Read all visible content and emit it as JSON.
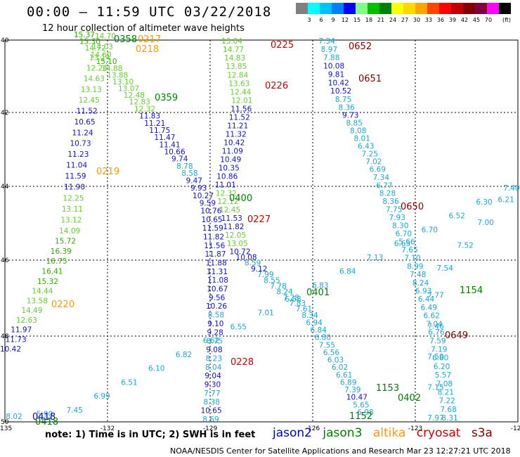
{
  "header": {
    "title": "00:00 – 11:59 UTC 03/22/2018",
    "subtitle": "12 hour collection of altimeter wave heights"
  },
  "color_scale": {
    "unit": "(ft)",
    "colors": [
      "#808080",
      "#00ffff",
      "#00bfff",
      "#0080ff",
      "#0000ff",
      "#80ff80",
      "#00c000",
      "#008000",
      "#ffff00",
      "#ffd700",
      "#ffa500",
      "#ff4500",
      "#ff0000",
      "#c00000",
      "#800000",
      "#800040",
      "#ff00ff",
      "#000000"
    ],
    "labels": [
      "3",
      "6",
      "9",
      "12",
      "15",
      "18",
      "21",
      "24",
      "27",
      "30",
      "33",
      "36",
      "39",
      "42",
      "45",
      "70"
    ]
  },
  "axes": {
    "lat_labels": [
      "40",
      "42",
      "44",
      "46",
      "48",
      "50"
    ],
    "lon_labels": [
      "-135",
      "-132",
      "-129",
      "-126",
      "-123",
      "-120"
    ]
  },
  "satellites": {
    "jason2": {
      "name": "jason2",
      "color": "#0000cc"
    },
    "jason3": {
      "name": "jason3",
      "color": "#008000"
    },
    "altika": {
      "name": "altika",
      "color": "#ff9900"
    },
    "cryosat": {
      "name": "cryosat",
      "color": "#cc0000"
    },
    "s3a": {
      "name": "s3a",
      "color": "#800000"
    }
  },
  "tracks": [
    {
      "id": "t1",
      "values": [
        "15.37",
        "15.30",
        "14.72",
        "14.60",
        "15.10",
        "14.88",
        "13.88",
        "13.10",
        "13.07",
        "12.48",
        "12.83",
        "12.32",
        "11.83",
        "11.21",
        "11.75",
        "11.47",
        "11.41",
        "10.66",
        "9.74",
        "8.78",
        "8.58",
        "9.47",
        "9.93",
        "10.27",
        "9.59",
        "10.76",
        "10.65",
        "11.59",
        "11.82",
        "11.56",
        "11.87",
        "11.88",
        "11.31",
        "11.08",
        "10.67",
        "9.56",
        "10.26",
        "8.58",
        "9.10",
        "9.28",
        "8.75",
        "9.08",
        "8.23",
        "8.04",
        "9.04",
        "9.30",
        "7.77",
        "8.38",
        "10.65",
        "8.69"
      ]
    },
    {
      "id": "t2",
      "values": [
        "13.84",
        "14.77",
        "14.83",
        "13.85",
        "12.84",
        "13.63",
        "12.44",
        "12.01",
        "11.56",
        "11.52",
        "11.21",
        "11.32",
        "10.42",
        "11.09",
        "10.49",
        "10.35",
        "10.86",
        "11.01",
        "12.32",
        "12.12",
        "12.45",
        "11.53",
        "11.82",
        "12.05",
        "13.05",
        "10.72",
        "10.08",
        "8.59",
        "9.12",
        "7.99",
        "8.55",
        "7.78",
        "8.24",
        "7.28",
        "7.83",
        "7.61",
        "8.34",
        "6.94",
        "6.84",
        "6.80",
        "7.55",
        "6.56",
        "6.03",
        "6.02",
        "6.61",
        "6.89",
        "7.39",
        "10.47",
        "5.65",
        "6.98"
      ]
    },
    {
      "id": "t3",
      "values": [
        "7.34",
        "8.97",
        "7.88",
        "10.08",
        "9.81",
        "10.42",
        "10.52",
        "8.75",
        "8.36",
        "9.73",
        "8.85",
        "8.08",
        "8.01",
        "6.43",
        "7.25",
        "7.02",
        "6.69",
        "7.34",
        "6.77",
        "8.28",
        "8.36",
        "7.75",
        "7.93",
        "8.30",
        "6.70",
        "5.66",
        "7.65",
        "7.10",
        "8.99",
        "7.48",
        "8.24",
        "6.93",
        "6.44",
        "6.49",
        "6.62",
        "7.04",
        "6.76",
        "7.59",
        "7.19",
        "6.80",
        "6.20",
        "5.57",
        "7.08",
        "8.21",
        "7.22",
        "7.68",
        "8.31"
      ]
    },
    {
      "id": "t4",
      "values": [
        "8.02",
        "5.90",
        "7.45",
        "6.99",
        "6.51",
        "6.10",
        "6.82",
        "6.62",
        "6.55",
        "7.01",
        "6.58",
        "6.83",
        "6.84",
        "7.13",
        "6.63",
        "6.70",
        "6.52",
        "6.30",
        "7.40",
        "6.21",
        "7.00",
        "7.52",
        "7.54",
        "7.77",
        "7.46",
        "7.50",
        "7.15",
        "7.97"
      ]
    },
    {
      "id": "t5",
      "values": [
        "10.42",
        "11.73",
        "11.97",
        "12.63",
        "14.49",
        "13.58",
        "14.44",
        "15.32",
        "16.41",
        "16.75",
        "16.39",
        "15.72",
        "14.09",
        "13.12",
        "13.11",
        "12.25",
        "11.90",
        "11.59",
        "11.04",
        "11.23",
        "10.73",
        "11.24",
        "10.65",
        "11.52",
        "12.45",
        "13.13",
        "14.63",
        "12.24",
        "13.14",
        "14.03",
        "14.70"
      ]
    }
  ],
  "time_labels": [
    {
      "t": "0358",
      "sat": "jason3"
    },
    {
      "t": "0217",
      "sat": "altika"
    },
    {
      "t": "0218",
      "sat": "altika"
    },
    {
      "t": "0359",
      "sat": "jason3"
    },
    {
      "t": "0219",
      "sat": "altika"
    },
    {
      "t": "0220",
      "sat": "altika"
    },
    {
      "t": "0418",
      "sat": "jason2"
    },
    {
      "t": "0418",
      "sat": "jason3"
    },
    {
      "t": "0225",
      "sat": "cryosat"
    },
    {
      "t": "0226",
      "sat": "cryosat"
    },
    {
      "t": "0400",
      "sat": "jason3"
    },
    {
      "t": "0227",
      "sat": "cryosat"
    },
    {
      "t": "0228",
      "sat": "cryosat"
    },
    {
      "t": "0401",
      "sat": "jason3"
    },
    {
      "t": "0652",
      "sat": "s3a"
    },
    {
      "t": "0651",
      "sat": "s3a"
    },
    {
      "t": "0650",
      "sat": "s3a"
    },
    {
      "t": "0649",
      "sat": "s3a"
    },
    {
      "t": "1154",
      "sat": "jason3"
    },
    {
      "t": "1153",
      "sat": "jason3"
    },
    {
      "t": "0402",
      "sat": "jason3"
    },
    {
      "t": "1152",
      "sat": "jason3"
    }
  ],
  "footer": {
    "note": "note:  1) Time is in UTC; 2) SWH is in feet",
    "credit": "NOAA/NESDIS Center for Satellite Applications and Research    Mar 23 12:27:21 UTC 2018"
  }
}
